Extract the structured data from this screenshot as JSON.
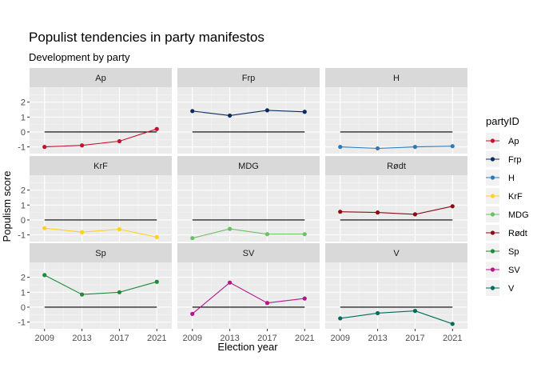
{
  "chart_data": {
    "type": "line",
    "title": "Populist tendencies in party manifestos",
    "subtitle": "Development by party",
    "xlabel": "Election year",
    "ylabel": "Populism score",
    "x": [
      2009,
      2013,
      2017,
      2021
    ],
    "x_ticks": [
      "2009",
      "2013",
      "2017",
      "2021"
    ],
    "ylim": [
      -1.45,
      3.0
    ],
    "y_ticks": [
      -1,
      0,
      1,
      2
    ],
    "y_tick_labels": [
      "-1",
      "0",
      "1",
      "2"
    ],
    "reference_line_y": 0,
    "facet_layout": "3x3",
    "grid": true,
    "legend": {
      "title": "partyID",
      "placement": "right"
    },
    "series": [
      {
        "name": "Ap",
        "color": "#C8102E",
        "values": [
          -1.0,
          -0.9,
          -0.62,
          0.2
        ]
      },
      {
        "name": "Frp",
        "color": "#0B2C5F",
        "values": [
          1.4,
          1.1,
          1.45,
          1.35
        ]
      },
      {
        "name": "H",
        "color": "#2B7BBA",
        "values": [
          -1.0,
          -1.1,
          -1.0,
          -0.95
        ]
      },
      {
        "name": "KrF",
        "color": "#FFD21F",
        "values": [
          -0.55,
          -0.82,
          -0.62,
          -1.15
        ]
      },
      {
        "name": "MDG",
        "color": "#6CBF67",
        "values": [
          -1.22,
          -0.6,
          -0.95,
          -0.95
        ]
      },
      {
        "name": "Rødt",
        "color": "#8B0A14",
        "values": [
          0.55,
          0.5,
          0.38,
          0.92
        ]
      },
      {
        "name": "Sp",
        "color": "#1F8B3A",
        "values": [
          2.15,
          0.85,
          1.0,
          1.7
        ]
      },
      {
        "name": "SV",
        "color": "#B2168A",
        "values": [
          -0.45,
          1.65,
          0.28,
          0.58
        ]
      },
      {
        "name": "V",
        "color": "#006A5B",
        "values": [
          -0.75,
          -0.4,
          -0.25,
          -1.12
        ]
      }
    ]
  }
}
